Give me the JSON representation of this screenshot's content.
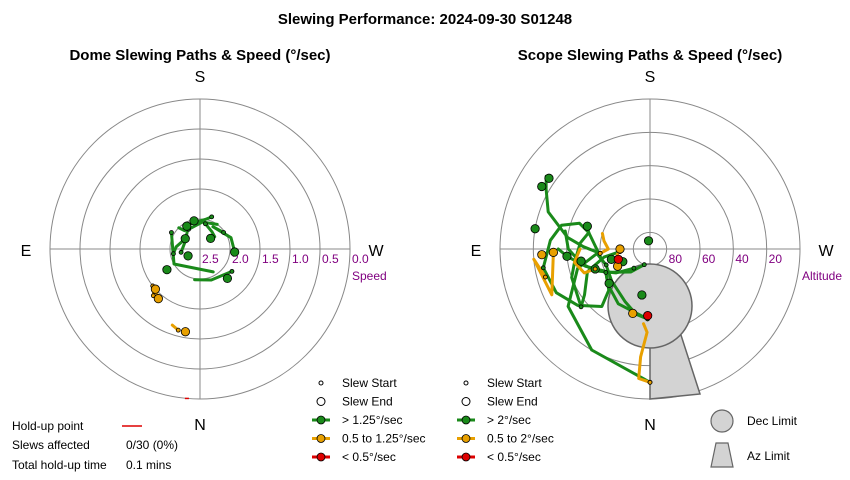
{
  "figure": {
    "title": "Slewing Performance: 2024-09-30 S01248"
  },
  "chart_data": [
    {
      "type": "polar",
      "title": "Dome Slewing Paths & Speed (°/sec)",
      "directions": {
        "top": "S",
        "bottom": "N",
        "left": "E",
        "right": "W"
      },
      "radial_axis": {
        "label": "Speed",
        "ticks": [
          "2.5",
          "2.0",
          "1.5",
          "1.0",
          "0.5",
          "0.0"
        ],
        "rlim": [
          0,
          2.5
        ],
        "inverted": true
      },
      "series": [
        {
          "speed_class": "> 1.25°/sec",
          "color": "#1a8a1a",
          "paths": [
            [
              [
                2.07,
                12
              ],
              [
                2.15,
                35
              ],
              [
                2.18,
                50
              ],
              [
                2.25,
                45
              ]
            ],
            [
              [
                1.93,
                20
              ],
              [
                2.0,
                10
              ],
              [
                2.05,
                -20
              ],
              [
                2.1,
                -40
              ],
              [
                2.0,
                -45
              ]
            ],
            [
              [
                2.02,
                55
              ],
              [
                2.07,
                30
              ],
              [
                1.95,
                70
              ],
              [
                1.92,
                95
              ]
            ],
            [
              [
                1.85,
                125
              ],
              [
                1.95,
                160
              ],
              [
                1.98,
                -170
              ]
            ],
            [
              [
                2.05,
                -100
              ],
              [
                2.1,
                -85
              ],
              [
                2.2,
                -55
              ]
            ],
            [
              [
                2.12,
                -30
              ],
              [
                2.05,
                5
              ],
              [
                2.0,
                35
              ]
            ],
            [
              [
                1.95,
                -60
              ],
              [
                2.0,
                -120
              ],
              [
                2.06,
                150
              ]
            ],
            [
              [
                2.18,
                -100
              ],
              [
                2.22,
                -60
              ],
              [
                2.05,
                -25
              ]
            ]
          ],
          "start_points": [
            [
              2.07,
              12
            ],
            [
              1.93,
              20
            ],
            [
              2.02,
              55
            ],
            [
              1.85,
              125
            ],
            [
              2.05,
              -100
            ],
            [
              2.12,
              -30
            ],
            [
              1.95,
              -60
            ],
            [
              2.18,
              -100
            ]
          ],
          "end_points": [
            [
              1.83,
              137
            ],
            [
              1.85,
              -122
            ],
            [
              2.27,
              -120
            ],
            [
              2.06,
              -30
            ],
            [
              2.02,
              -12
            ],
            [
              2.25,
              45
            ],
            [
              2.2,
              -55
            ],
            [
              1.92,
              95
            ]
          ]
        },
        {
          "speed_class": "0.5 to 1.25°/sec",
          "color": "#e8a000",
          "paths": [
            [
              [
                1.1,
                -165
              ],
              [
                1.15,
                -160
              ]
            ],
            [
              [
                1.4,
                -135
              ],
              [
                1.5,
                -130
              ]
            ],
            [
              [
                1.5,
                -128
              ],
              [
                1.45,
                -138
              ]
            ]
          ],
          "start_points": [
            [
              1.1,
              -165
            ],
            [
              1.4,
              -135
            ],
            [
              1.5,
              -128
            ]
          ],
          "end_points": [
            [
              1.1,
              -170
            ],
            [
              1.42,
              -140
            ],
            [
              1.5,
              -132
            ]
          ]
        },
        {
          "speed_class": "< 0.5°/sec",
          "color": "#dd0000",
          "paths": [],
          "start_points": [],
          "end_points": []
        }
      ],
      "hold_up_points": [
        [
          0.0,
          -175
        ]
      ]
    },
    {
      "type": "polar",
      "title": "Scope Slewing Paths & Speed (°/sec)",
      "directions": {
        "top": "S",
        "bottom": "N",
        "left": "E",
        "right": "W"
      },
      "radial_axis": {
        "label": "Altitude",
        "ticks": [
          "80",
          "60",
          "40",
          "20"
        ],
        "rlim": [
          90,
          0
        ]
      },
      "series": [
        {
          "speed_class": "> 2°/sec",
          "color": "#1a8a1a",
          "paths": [
            [
              [
                10,
                -180
              ],
              [
                20,
                -150
              ],
              [
                30,
                -125
              ],
              [
                45,
                -105
              ],
              [
                58,
                -95
              ],
              [
                62,
                -110
              ]
            ],
            [
              [
                62,
                -110
              ],
              [
                60,
                -130
              ],
              [
                55,
                -155
              ],
              [
                50,
                -168
              ],
              [
                48,
                -178
              ]
            ],
            [
              [
                48,
                -178
              ],
              [
                52,
                -150
              ],
              [
                57,
                -130
              ],
              [
                60,
                -118
              ]
            ],
            [
              [
                60,
                -118
              ],
              [
                55,
                -135
              ],
              [
                45,
                -140
              ],
              [
                35,
                -128
              ],
              [
                28,
                -115
              ],
              [
                25,
                -100
              ]
            ],
            [
              [
                25,
                -100
              ],
              [
                30,
                -85
              ],
              [
                35,
                -75
              ],
              [
                45,
                -70
              ],
              [
                52,
                -75
              ],
              [
                58,
                -90
              ],
              [
                60,
                -100
              ]
            ],
            [
              [
                80,
                -160
              ],
              [
                72,
                -140
              ],
              [
                62,
                -120
              ],
              [
                50,
                -105
              ],
              [
                40,
                -95
              ],
              [
                35,
                -90
              ]
            ],
            [
              [
                72,
                -95
              ],
              [
                62,
                -100
              ],
              [
                50,
                -110
              ],
              [
                42,
                -125
              ],
              [
                36,
                -130
              ]
            ],
            [
              [
                36,
                -130
              ],
              [
                40,
                -110
              ],
              [
                44,
                -100
              ],
              [
                48,
                -85
              ],
              [
                52,
                -75
              ],
              [
                50,
                -70
              ]
            ],
            [
              [
                75,
                -140
              ],
              [
                65,
                -125
              ],
              [
                55,
                -112
              ],
              [
                48,
                -102
              ],
              [
                41,
                -90
              ],
              [
                38,
                -78
              ]
            ],
            [
              [
                60,
                -95
              ],
              [
                50,
                -88
              ],
              [
                40,
                -82
              ],
              [
                25,
                -70
              ],
              [
                18,
                -60
              ],
              [
                14,
                -55
              ]
            ]
          ],
          "start_points": [
            [
              10,
              -180
            ],
            [
              62,
              -110
            ],
            [
              48,
              -178
            ],
            [
              60,
              -118
            ],
            [
              25,
              -100
            ],
            [
              80,
              -160
            ],
            [
              72,
              -95
            ],
            [
              36,
              -130
            ],
            [
              75,
              -140
            ],
            [
              60,
              -95
            ]
          ],
          "end_points": [
            [
              62,
              -170
            ],
            [
              72,
              -115
            ],
            [
              66,
              -105
            ],
            [
              58,
              -130
            ],
            [
              55,
              -110
            ],
            [
              48,
              -100
            ],
            [
              40,
              -95
            ],
            [
              20,
              -80
            ],
            [
              15,
              -60
            ],
            [
              16,
              -55
            ],
            [
              50,
              -70
            ],
            [
              85,
              -10
            ]
          ]
        },
        {
          "speed_class": "0.5 to 2°/sec",
          "color": "#e8a000",
          "paths": [
            [
              [
                10,
                -180
              ],
              [
                12,
                -175
              ],
              [
                25,
                -175
              ],
              [
                40,
                -178
              ],
              [
                45,
                -175
              ]
            ],
            [
              [
                25,
                -105
              ],
              [
                20,
                -95
              ],
              [
                25,
                -115
              ],
              [
                32,
                -92
              ]
            ],
            [
              [
                55,
                -110
              ],
              [
                48,
                -110
              ],
              [
                44,
                -100
              ],
              [
                48,
                -90
              ]
            ],
            [
              [
                60,
                -95
              ],
              [
                65,
                -90
              ],
              [
                62,
                -80
              ],
              [
                60,
                -72
              ]
            ],
            [
              [
                68,
                -115
              ],
              [
                70,
                -100
              ],
              [
                72,
                -90
              ]
            ]
          ],
          "start_points": [
            [
              10,
              -180
            ],
            [
              25,
              -105
            ],
            [
              55,
              -110
            ],
            [
              60,
              -95
            ],
            [
              68,
              -115
            ]
          ],
          "end_points": [
            [
              50,
              -165
            ],
            [
              25,
              -93
            ],
            [
              32,
              -92
            ],
            [
              72,
              -90
            ],
            [
              68,
              -118
            ]
          ]
        },
        {
          "speed_class": "< 0.5°/sec",
          "color": "#dd0000",
          "paths": [],
          "start_points": [],
          "end_points": [
            [
              50,
              -178
            ],
            [
              70,
              -108
            ]
          ]
        }
      ],
      "limits": {
        "dec_limit": "Dec Limit",
        "az_limit": "Az Limit"
      }
    }
  ],
  "legends": {
    "dome": [
      {
        "symbol": "start",
        "label": "Slew Start"
      },
      {
        "symbol": "end",
        "label": "Slew End"
      },
      {
        "symbol": "line",
        "color": "#1a8a1a",
        "label": "> 1.25°/sec"
      },
      {
        "symbol": "line",
        "color": "#e8a000",
        "label": "0.5 to 1.25°/sec"
      },
      {
        "symbol": "line",
        "color": "#dd0000",
        "label": "< 0.5°/sec"
      }
    ],
    "scope": [
      {
        "symbol": "start",
        "label": "Slew Start"
      },
      {
        "symbol": "end",
        "label": "Slew End"
      },
      {
        "symbol": "line",
        "color": "#1a8a1a",
        "label": "> 2°/sec"
      },
      {
        "symbol": "line",
        "color": "#e8a000",
        "label": "0.5 to 2°/sec"
      },
      {
        "symbol": "line",
        "color": "#dd0000",
        "label": "< 0.5°/sec"
      }
    ],
    "limits": [
      {
        "symbol": "circle",
        "label": "Dec Limit"
      },
      {
        "symbol": "wedge",
        "label": "Az Limit"
      }
    ]
  },
  "hold_up": {
    "point_label": "Hold-up point",
    "point_color": "#dd0000",
    "slews_affected_label": "Slews affected",
    "slews_affected_value": "0/30 (0%)",
    "total_time_label": "Total hold-up time",
    "total_time_value": "0.1 mins"
  },
  "colors": {
    "grid": "#888888",
    "limit_fill": "#d3d3d3",
    "limit_stroke": "#666666",
    "axis_label": "#800080"
  }
}
